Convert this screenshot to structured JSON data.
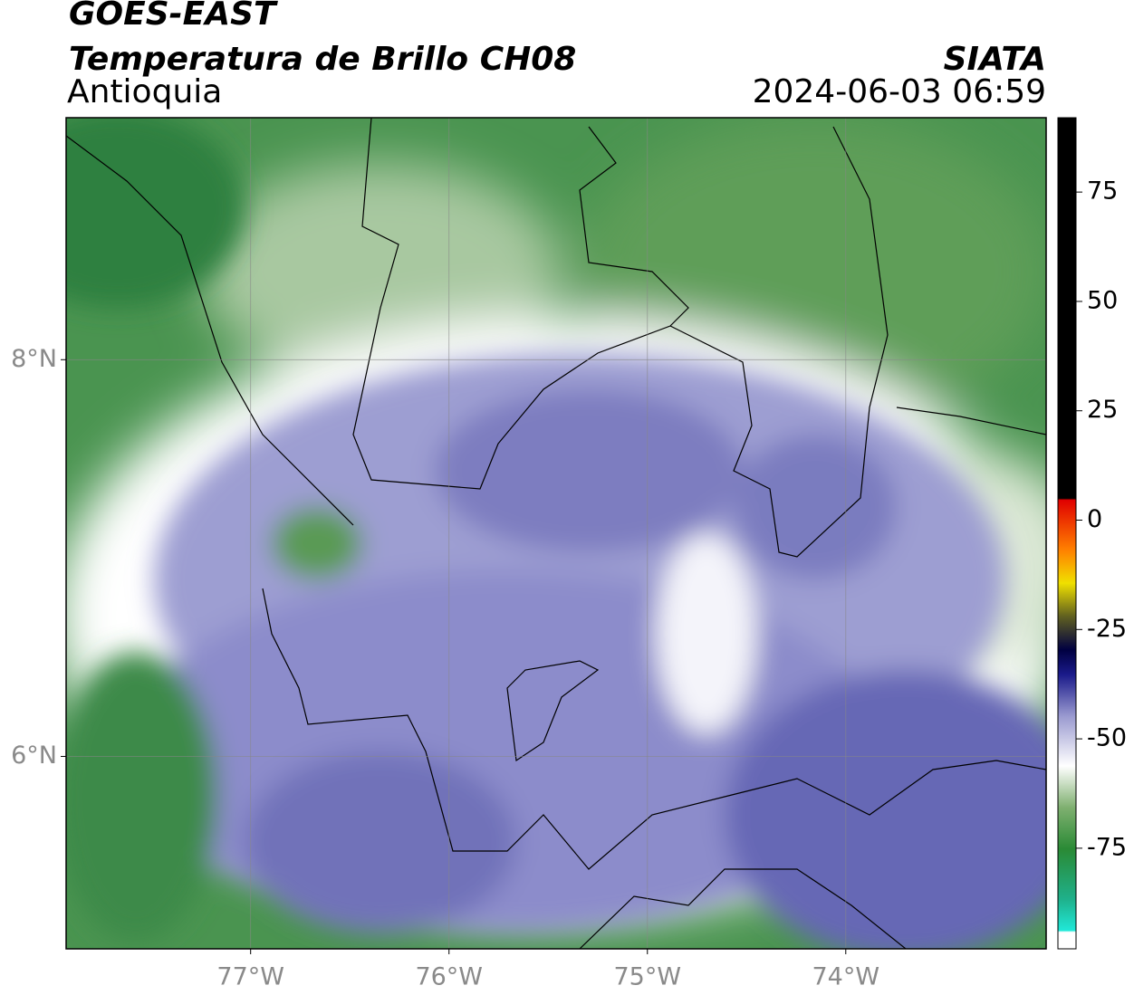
{
  "chart_data": {
    "type": "map",
    "title": "GOES-EAST",
    "subtitle": "Temperatura de Brillo CH08",
    "region": "Antioquia",
    "source": "SIATA",
    "timestamp": "2024-06-03 06:59",
    "xlim": [
      -77.93,
      -72.99
    ],
    "ylim": [
      5.03,
      9.22
    ],
    "xticks": [
      {
        "value": -77,
        "label": "77°W"
      },
      {
        "value": -76,
        "label": "76°W"
      },
      {
        "value": -75,
        "label": "75°W"
      },
      {
        "value": -74,
        "label": "74°W"
      }
    ],
    "yticks": [
      {
        "value": 6,
        "label": "6°N"
      },
      {
        "value": 8,
        "label": "8°N"
      }
    ],
    "grid": true,
    "colorbar": {
      "lim": [
        -98,
        92
      ],
      "ticks": [
        -75,
        -50,
        -25,
        0,
        25,
        50,
        75
      ]
    }
  }
}
